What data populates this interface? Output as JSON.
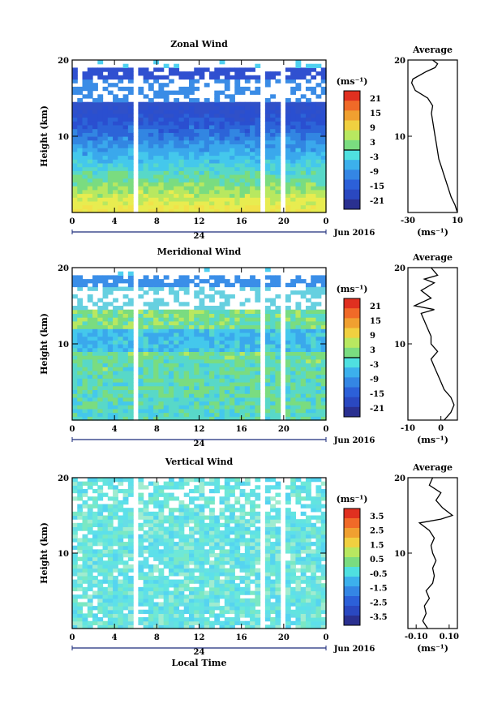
{
  "chart_data": [
    {
      "type": "heatmap",
      "title": "Zonal Wind",
      "ylabel": "Height (km)",
      "ylim": [
        0,
        20
      ],
      "yticks": [
        "10",
        "20"
      ],
      "xticks": [
        "0",
        "4",
        "8",
        "12",
        "16",
        "20",
        "0"
      ],
      "date_label": "24",
      "month_label": "Jun 2016",
      "colorbar": {
        "unit": "(ms⁻¹)",
        "ticks": [
          "21",
          "15",
          "9",
          "3",
          "-3",
          "-9",
          "-15",
          "-21"
        ]
      },
      "profile": {
        "title": "Average",
        "xticks": [
          "-30",
          "10"
        ],
        "xlim": [
          -30,
          10
        ],
        "xunit": "(ms⁻¹)",
        "points": [
          [
            10,
            0
          ],
          [
            8,
            1
          ],
          [
            5,
            2
          ],
          [
            3,
            3
          ],
          [
            1,
            4
          ],
          [
            -1,
            5
          ],
          [
            -3,
            6
          ],
          [
            -5,
            7
          ],
          [
            -6,
            8
          ],
          [
            -7,
            9
          ],
          [
            -8,
            10
          ],
          [
            -9,
            11
          ],
          [
            -10,
            12
          ],
          [
            -11,
            13
          ],
          [
            -10,
            14
          ],
          [
            -14,
            15
          ],
          [
            -24,
            16
          ],
          [
            -27,
            17
          ],
          [
            -26,
            17.5
          ],
          [
            -15,
            18.5
          ],
          [
            -8,
            19
          ],
          [
            -6,
            19.5
          ],
          [
            -10,
            20
          ]
        ]
      }
    },
    {
      "type": "heatmap",
      "title": "Meridional Wind",
      "ylabel": "Height (km)",
      "ylim": [
        0,
        20
      ],
      "yticks": [
        "10",
        "20"
      ],
      "xticks": [
        "0",
        "4",
        "8",
        "12",
        "16",
        "20",
        "0"
      ],
      "date_label": "24",
      "month_label": "Jun 2016",
      "colorbar": {
        "unit": "(ms⁻¹)",
        "ticks": [
          "21",
          "15",
          "9",
          "3",
          "-3",
          "-9",
          "-15",
          "-21"
        ]
      },
      "profile": {
        "title": "Average",
        "xticks": [
          "-10",
          "0"
        ],
        "xlim": [
          -10,
          5
        ],
        "xunit": "(ms⁻¹)",
        "points": [
          [
            1,
            0
          ],
          [
            3,
            1
          ],
          [
            4,
            2
          ],
          [
            3,
            3
          ],
          [
            1,
            4
          ],
          [
            0,
            5
          ],
          [
            -1,
            6
          ],
          [
            -2,
            7
          ],
          [
            -3,
            8
          ],
          [
            -1,
            9
          ],
          [
            -3,
            10
          ],
          [
            -3,
            11
          ],
          [
            -4,
            12
          ],
          [
            -5,
            13
          ],
          [
            -6,
            14
          ],
          [
            -2,
            14.5
          ],
          [
            -8,
            15
          ],
          [
            -3,
            16
          ],
          [
            -6,
            17
          ],
          [
            -2,
            18
          ],
          [
            -5,
            18.5
          ],
          [
            -1,
            19
          ],
          [
            -3,
            20
          ]
        ]
      }
    },
    {
      "type": "heatmap",
      "title": "Vertical Wind",
      "xlabel": "Local Time",
      "ylabel": "Height (km)",
      "ylim": [
        0,
        20
      ],
      "yticks": [
        "10",
        "20"
      ],
      "xticks": [
        "0",
        "4",
        "8",
        "12",
        "16",
        "20",
        "0"
      ],
      "date_label": "24",
      "month_label": "Jun 2016",
      "colorbar": {
        "unit": "(ms⁻¹)",
        "ticks": [
          "3.5",
          "2.5",
          "1.5",
          "0.5",
          "-0.5",
          "-1.5",
          "-2.5",
          "-3.5"
        ]
      },
      "profile": {
        "title": "Average",
        "xticks": [
          "-0.10",
          "0.10"
        ],
        "xlim": [
          -0.15,
          0.15
        ],
        "xunit": "(ms⁻¹)",
        "points": [
          [
            -0.03,
            0
          ],
          [
            -0.06,
            1
          ],
          [
            -0.04,
            2
          ],
          [
            -0.05,
            3
          ],
          [
            -0.02,
            4
          ],
          [
            -0.04,
            5
          ],
          [
            0.0,
            6
          ],
          [
            0.01,
            7
          ],
          [
            0.0,
            8
          ],
          [
            0.02,
            9
          ],
          [
            0.0,
            10
          ],
          [
            -0.01,
            11
          ],
          [
            0.01,
            12
          ],
          [
            -0.02,
            13
          ],
          [
            -0.08,
            14
          ],
          [
            0.05,
            14.5
          ],
          [
            0.12,
            15
          ],
          [
            0.06,
            16
          ],
          [
            0.02,
            17
          ],
          [
            0.05,
            18
          ],
          [
            -0.02,
            19
          ],
          [
            0.0,
            20
          ]
        ]
      }
    }
  ]
}
